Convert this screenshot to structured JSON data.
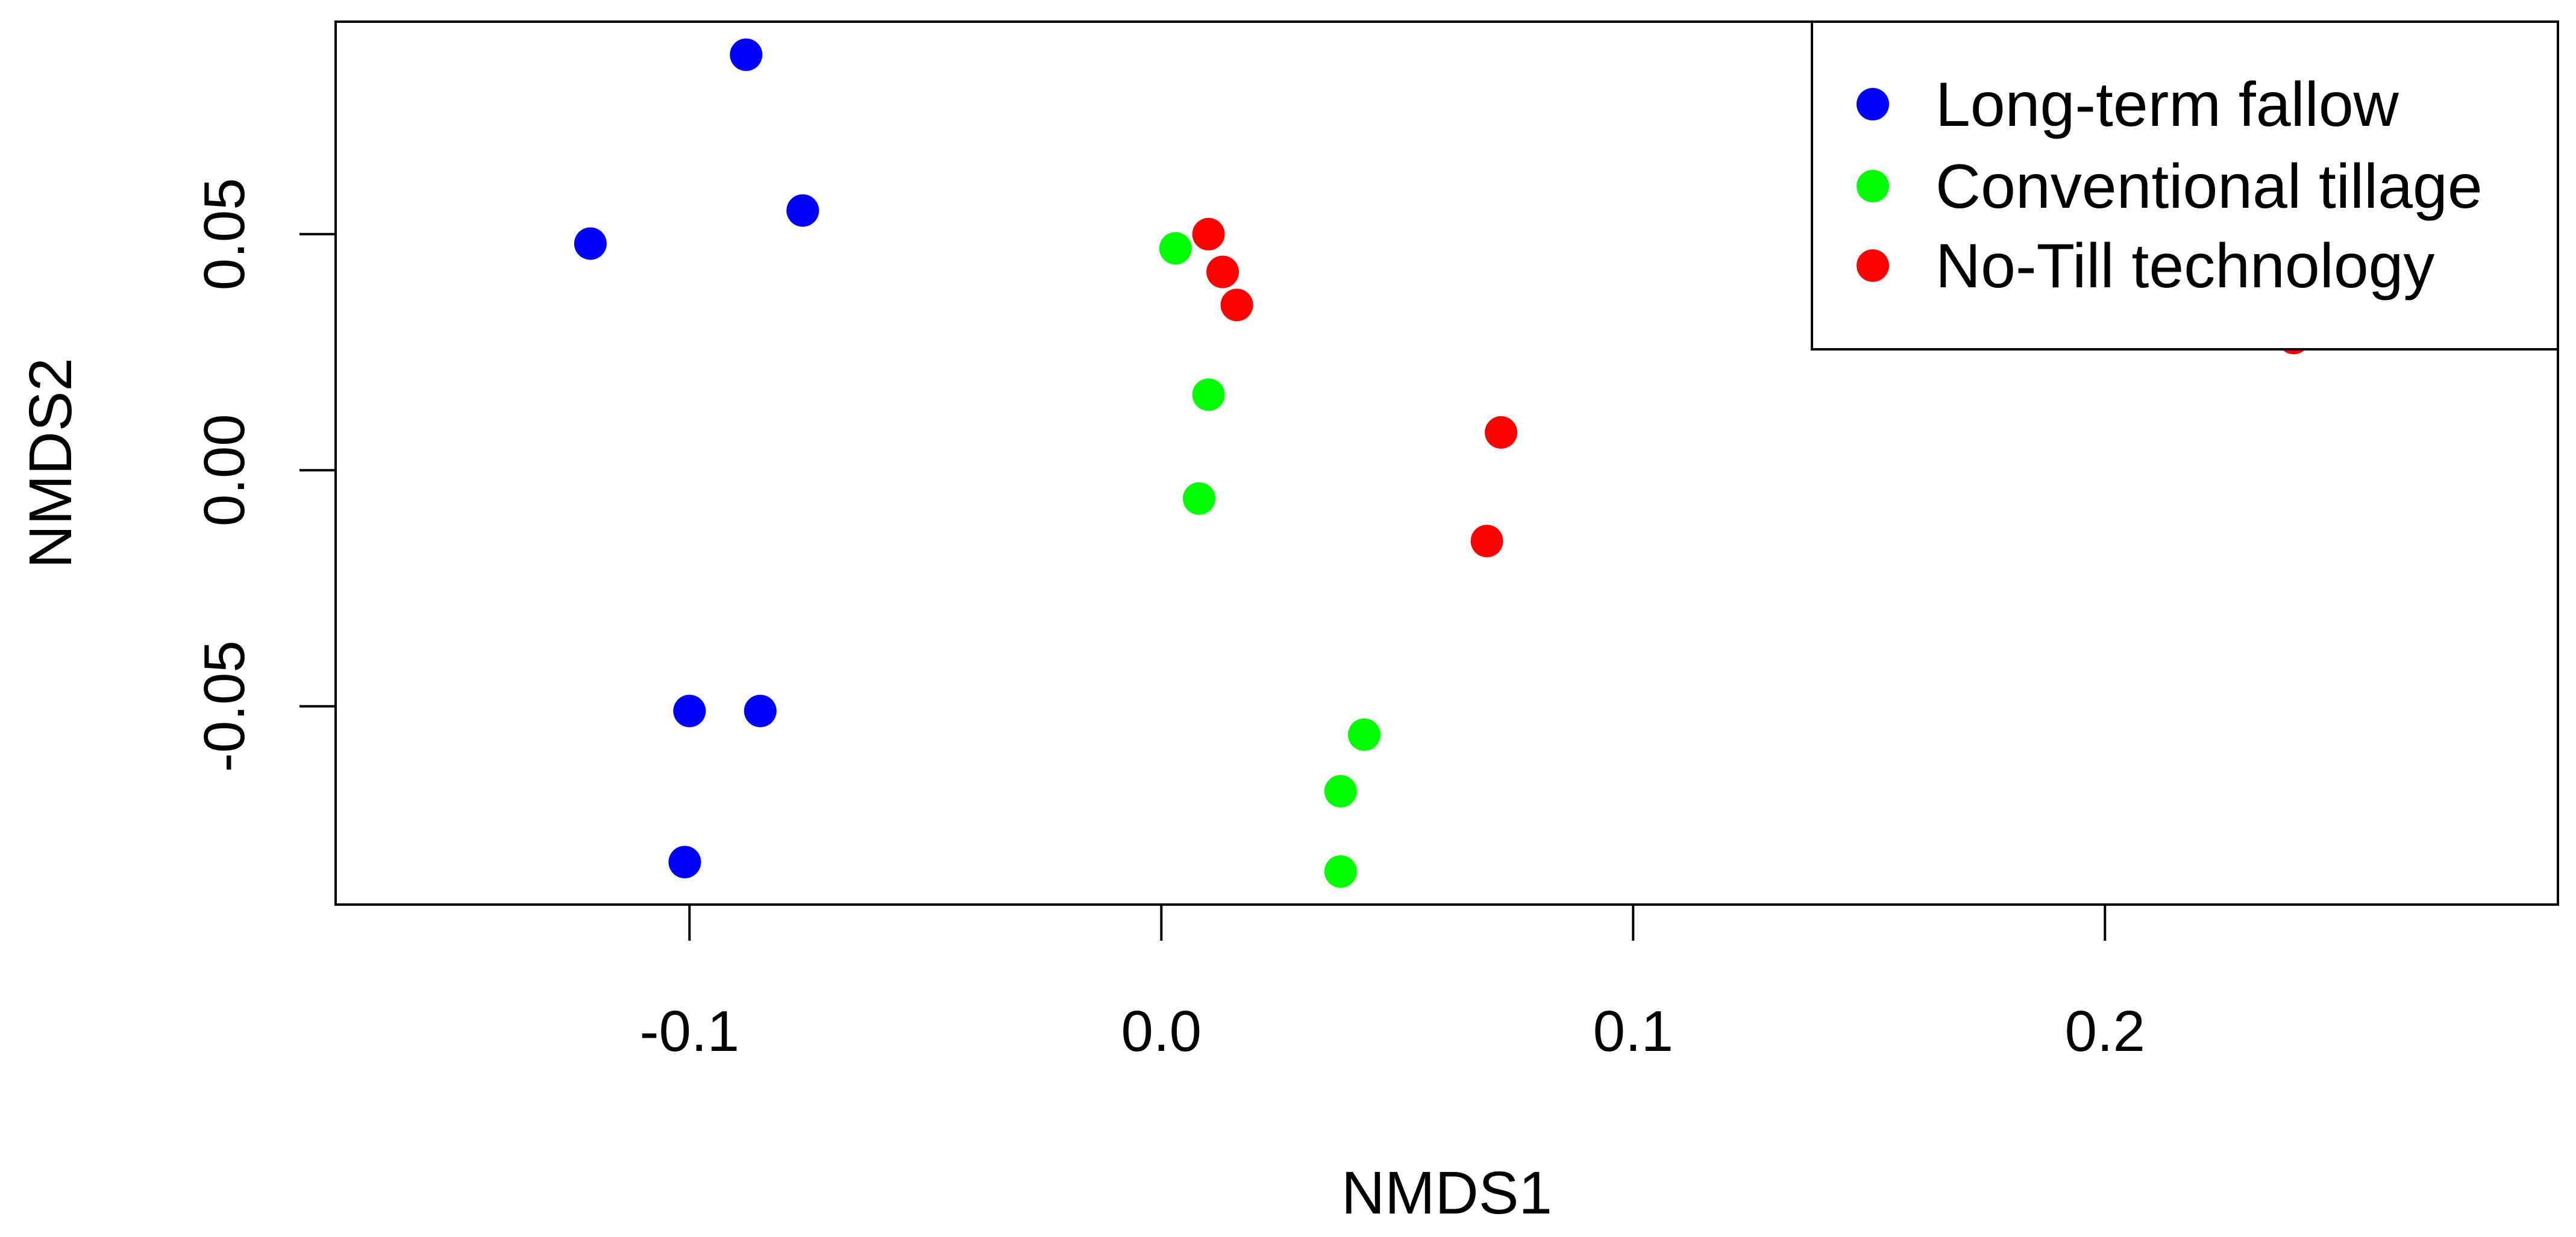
{
  "chart_data": {
    "type": "scatter",
    "title": "",
    "xlabel": "NMDS1",
    "ylabel": "NMDS2",
    "xlim": [
      -0.175,
      0.296
    ],
    "ylim": [
      -0.092,
      0.095
    ],
    "x_ticks": [
      -0.1,
      0.0,
      0.1,
      0.2
    ],
    "x_tick_labels": [
      "-0.1",
      "0.0",
      "0.1",
      "0.2"
    ],
    "y_ticks": [
      -0.05,
      0.0,
      0.05
    ],
    "y_tick_labels": [
      "-0.05",
      "0.00",
      "0.05"
    ],
    "grid": false,
    "legend": {
      "position": "top-right"
    },
    "series": [
      {
        "name": "Long-term fallow",
        "color": "#0000ff",
        "points": [
          {
            "x": -0.088,
            "y": 0.088
          },
          {
            "x": -0.076,
            "y": 0.055
          },
          {
            "x": -0.121,
            "y": 0.048
          },
          {
            "x": -0.1,
            "y": -0.051
          },
          {
            "x": -0.085,
            "y": -0.051
          },
          {
            "x": -0.101,
            "y": -0.083
          }
        ]
      },
      {
        "name": "Conventional tillage",
        "color": "#00ff00",
        "points": [
          {
            "x": 0.003,
            "y": 0.047
          },
          {
            "x": 0.01,
            "y": 0.016
          },
          {
            "x": 0.008,
            "y": -0.006
          },
          {
            "x": 0.043,
            "y": -0.056
          },
          {
            "x": 0.038,
            "y": -0.068
          },
          {
            "x": 0.038,
            "y": -0.085
          }
        ]
      },
      {
        "name": "No-Till technology",
        "color": "#ff0000",
        "points": [
          {
            "x": 0.01,
            "y": 0.05
          },
          {
            "x": 0.013,
            "y": 0.042
          },
          {
            "x": 0.016,
            "y": 0.035
          },
          {
            "x": 0.072,
            "y": 0.008
          },
          {
            "x": 0.069,
            "y": -0.015
          },
          {
            "x": 0.24,
            "y": 0.028
          }
        ]
      }
    ]
  }
}
